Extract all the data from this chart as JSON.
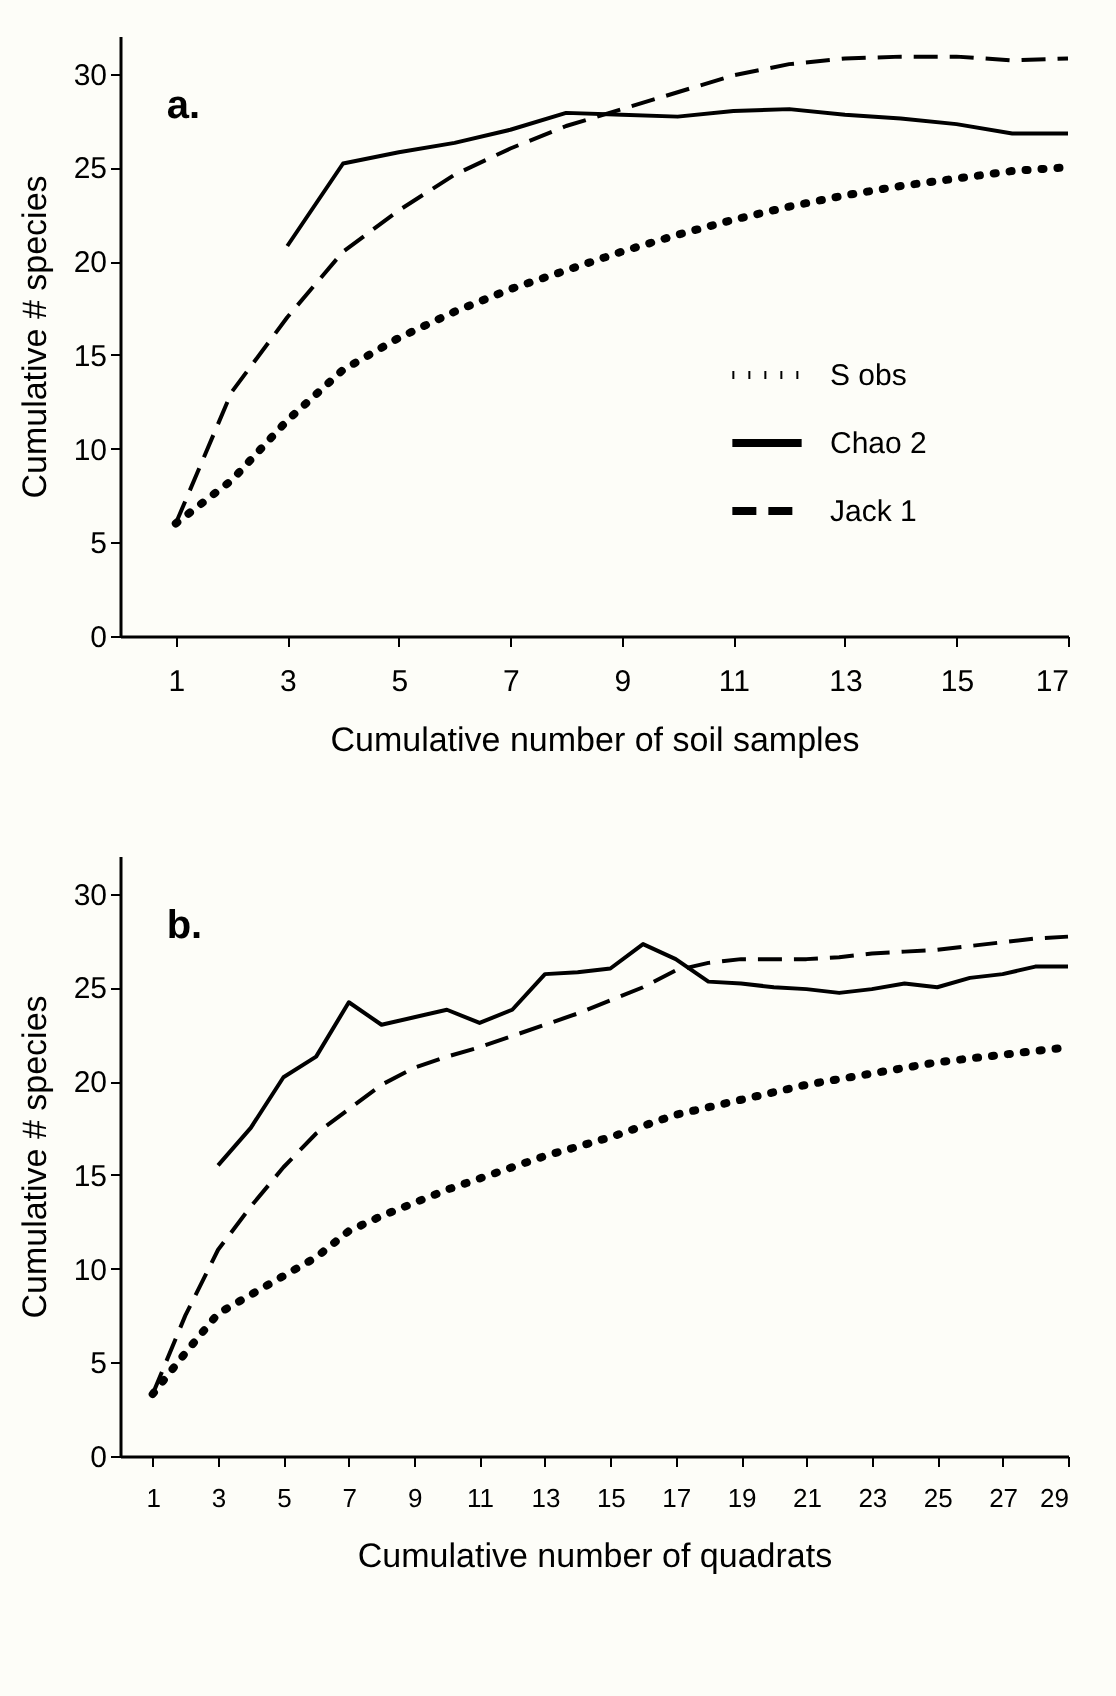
{
  "chart_data": [
    {
      "type": "line",
      "title": "a.",
      "xlabel": "Cumulative number of soil samples",
      "ylabel": "Cumulative # species",
      "x": [
        1,
        2,
        3,
        4,
        5,
        6,
        7,
        8,
        9,
        10,
        11,
        12,
        13,
        14,
        15,
        16,
        17
      ],
      "xlim": [
        0,
        17
      ],
      "xticks": [
        1,
        3,
        5,
        7,
        9,
        11,
        13,
        15,
        17
      ],
      "ylim": [
        0,
        32
      ],
      "yticks": [
        0,
        5,
        10,
        15,
        20,
        25,
        30
      ],
      "legend": "right",
      "series": [
        {
          "name": "S obs",
          "color": "#000000",
          "line_style": "dotted",
          "values": [
            6,
            8.3,
            11.5,
            14.2,
            15.9,
            17.3,
            18.5,
            19.5,
            20.5,
            21.4,
            22.2,
            22.9,
            23.5,
            24,
            24.4,
            24.8,
            25
          ]
        },
        {
          "name": "Chao 2",
          "color": "#000000",
          "line_style": "solid",
          "values": [
            null,
            null,
            20.8,
            25.2,
            25.8,
            26.3,
            27,
            27.9,
            27.8,
            27.7,
            28,
            28.1,
            27.8,
            27.6,
            27.3,
            26.8,
            26.8
          ]
        },
        {
          "name": "Jack 1",
          "color": "#000000",
          "line_style": "dashed",
          "values": [
            6,
            13,
            17,
            20.5,
            22.7,
            24.6,
            26,
            27.2,
            28.1,
            29,
            29.9,
            30.5,
            30.8,
            30.9,
            30.9,
            30.7,
            30.8
          ]
        }
      ]
    },
    {
      "type": "line",
      "title": "b.",
      "xlabel": "Cumulative number of quadrats",
      "ylabel": "Cumulative # species",
      "x": [
        1,
        2,
        3,
        4,
        5,
        6,
        7,
        8,
        9,
        10,
        11,
        12,
        13,
        14,
        15,
        16,
        17,
        18,
        19,
        20,
        21,
        22,
        23,
        24,
        25,
        26,
        27,
        28,
        29
      ],
      "xlim": [
        0,
        29
      ],
      "xticks": [
        1,
        3,
        5,
        7,
        9,
        11,
        13,
        15,
        17,
        19,
        21,
        23,
        25,
        27,
        29
      ],
      "ylim": [
        0,
        32
      ],
      "yticks": [
        0,
        5,
        10,
        15,
        20,
        25,
        30
      ],
      "legend": "right",
      "series": [
        {
          "name": "S obs",
          "color": "#000000",
          "line_style": "dotted",
          "values": [
            3.3,
            5.5,
            7.6,
            8.6,
            9.6,
            10.6,
            12,
            12.8,
            13.5,
            14.2,
            14.8,
            15.4,
            16,
            16.5,
            17,
            17.6,
            18.2,
            18.6,
            19,
            19.4,
            19.8,
            20.1,
            20.4,
            20.7,
            21,
            21.2,
            21.4,
            21.6,
            21.8
          ]
        },
        {
          "name": "Chao 2",
          "color": "#000000",
          "line_style": "solid",
          "values": [
            null,
            null,
            15.5,
            17.5,
            20.2,
            21.3,
            24.2,
            23,
            23.4,
            23.8,
            23.1,
            23.8,
            25.7,
            25.8,
            26,
            27.3,
            26.5,
            25.3,
            25.2,
            25,
            24.9,
            24.7,
            24.9,
            25.2,
            25,
            25.5,
            25.7,
            26.1,
            26.1
          ]
        },
        {
          "name": "Jack 1",
          "color": "#000000",
          "line_style": "dashed",
          "values": [
            3.3,
            7.5,
            11,
            13.3,
            15.4,
            17.2,
            18.5,
            19.8,
            20.7,
            21.3,
            21.8,
            22.4,
            23,
            23.6,
            24.3,
            25,
            25.9,
            26.3,
            26.5,
            26.5,
            26.5,
            26.6,
            26.8,
            26.9,
            27,
            27.2,
            27.4,
            27.6,
            27.7
          ]
        }
      ]
    }
  ]
}
